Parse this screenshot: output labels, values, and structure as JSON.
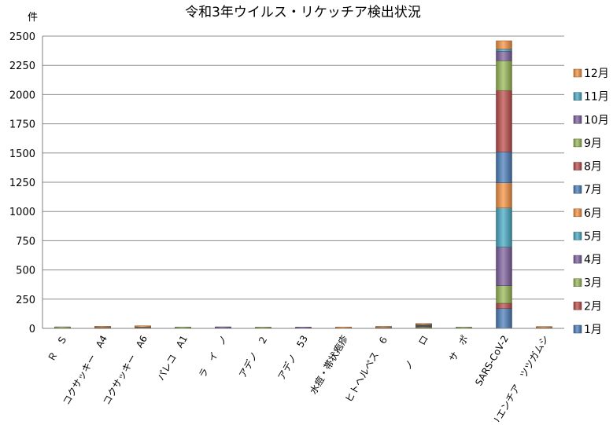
{
  "chart_data": {
    "type": "bar",
    "stacked": true,
    "title": "令和3年ウイルス・リケッチア検出状況",
    "ylabel": "件",
    "xlabel": "",
    "ylim": [
      0,
      2500
    ],
    "yticks": [
      0,
      250,
      500,
      750,
      1000,
      1250,
      1500,
      1750,
      2000,
      2250,
      2500
    ],
    "grid": true,
    "legend_position": "right",
    "categories": [
      "Ｒ　Ｓ",
      "コクサッキー　A4",
      "コクサッキー　A6",
      "パレコ　A1",
      "ラ　イ　ノ",
      "アデノ　２",
      "アデノ　53",
      "水痘・帯状疱疹",
      "ヒトヘルペス　６",
      "ノ　　ロ",
      "サ　ポ",
      "SARS-CoV-2",
      "オリエンチア　ツツガムシ"
    ],
    "series": [
      {
        "name": "1月",
        "color": "#4f81bd",
        "values": [
          1,
          0,
          0,
          0,
          0,
          0,
          0,
          0,
          0,
          4,
          0,
          170,
          2
        ]
      },
      {
        "name": "2月",
        "color": "#c0504d",
        "values": [
          0,
          0,
          0,
          0,
          0,
          0,
          0,
          0,
          0,
          5,
          0,
          45,
          0
        ]
      },
      {
        "name": "3月",
        "color": "#9bbb59",
        "values": [
          0,
          0,
          0,
          0,
          0,
          0,
          0,
          0,
          0,
          6,
          1,
          150,
          0
        ]
      },
      {
        "name": "4月",
        "color": "#8064a2",
        "values": [
          0,
          0,
          0,
          0,
          0,
          1,
          0,
          0,
          0,
          4,
          0,
          330,
          0
        ]
      },
      {
        "name": "5月",
        "color": "#4bacc6",
        "values": [
          0,
          0,
          0,
          0,
          1,
          0,
          0,
          1,
          1,
          3,
          0,
          335,
          0
        ]
      },
      {
        "name": "6月",
        "color": "#f79646",
        "values": [
          0,
          0,
          0,
          0,
          0,
          0,
          1,
          0,
          1,
          2,
          0,
          215,
          0
        ]
      },
      {
        "name": "7月",
        "color": "#4f81bd",
        "values": [
          1,
          2,
          3,
          1,
          1,
          0,
          0,
          0,
          1,
          1,
          0,
          265,
          0
        ]
      },
      {
        "name": "8月",
        "color": "#c0504d",
        "values": [
          1,
          3,
          4,
          1,
          0,
          0,
          0,
          1,
          1,
          1,
          0,
          525,
          0
        ]
      },
      {
        "name": "9月",
        "color": "#9bbb59",
        "values": [
          1,
          2,
          3,
          1,
          1,
          1,
          0,
          0,
          1,
          1,
          1,
          255,
          0
        ]
      },
      {
        "name": "10月",
        "color": "#8064a2",
        "values": [
          0,
          1,
          1,
          0,
          1,
          0,
          1,
          0,
          1,
          2,
          0,
          80,
          1
        ]
      },
      {
        "name": "11月",
        "color": "#4bacc6",
        "values": [
          0,
          0,
          1,
          0,
          0,
          0,
          0,
          0,
          1,
          3,
          0,
          20,
          3
        ]
      },
      {
        "name": "12月",
        "color": "#f79646",
        "values": [
          0,
          1,
          2,
          0,
          0,
          0,
          0,
          1,
          1,
          4,
          0,
          70,
          5
        ]
      }
    ]
  }
}
